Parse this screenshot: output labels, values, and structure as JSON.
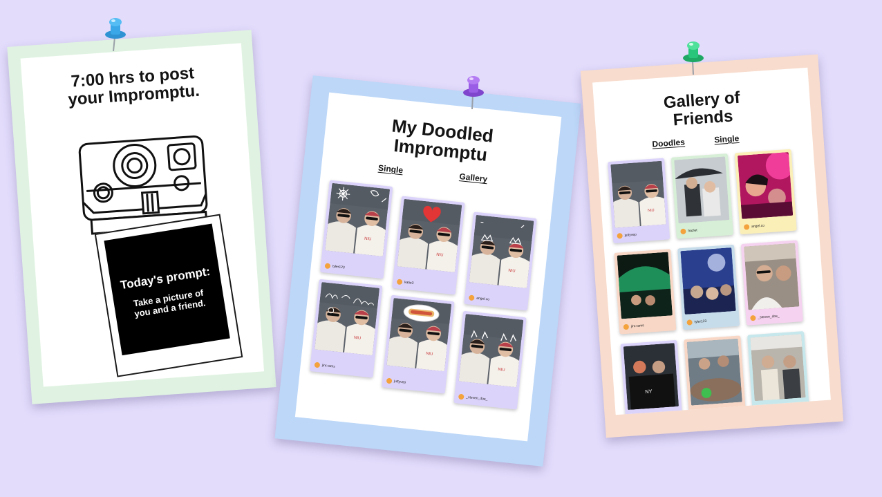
{
  "card_timer": {
    "title_line1": "7:00 hrs to post",
    "title_line2": "your Impromptu.",
    "prompt_title": "Today's prompt:",
    "prompt_text": "Take a picture of you and a friend.",
    "bg_color": "#e0f3e2",
    "pin_color": "#3aa8e8",
    "illustration": "instant-camera-icon"
  },
  "card_doodled": {
    "title_line1": "My Doodled",
    "title_line2": "Impromptu",
    "tab_single": "Single",
    "tab_gallery": "Gallery",
    "bg_color": "#bcd7f8",
    "pin_color": "#9a5ee6",
    "photos": [
      {
        "username": "tyler123",
        "doodle": "flower-doodle"
      },
      {
        "username": "katie3",
        "doodle": "heart-doodle"
      },
      {
        "username": "angel.co",
        "doodle": "crown-doodle"
      },
      {
        "username": "jinr.rams",
        "doodle": "text-doodle"
      },
      {
        "username": "juttyvep",
        "doodle": "hotdog-doodle"
      },
      {
        "username": "_steven_doe_",
        "doodle": "ears-doodle"
      }
    ]
  },
  "card_gallery": {
    "title_line1": "Gallery of",
    "title_line2": "Friends",
    "tab_doodles": "Doodles",
    "tab_single": "Single",
    "bg_color": "#f8dccd",
    "pin_color": "#29c57a",
    "photos": [
      {
        "username": "juttyvep",
        "frame": "#dcd3fb",
        "scene": "friends-selfie"
      },
      {
        "username": "hazlet",
        "frame": "#d6efd6",
        "scene": "umbrella-friends"
      },
      {
        "username": "angel.co",
        "frame": "#fbefb8",
        "scene": "party-lights"
      },
      {
        "username": "jinr.rams",
        "frame": "#f8d7c6",
        "scene": "green-stadium"
      },
      {
        "username": "tyler123",
        "frame": "#c7dceb",
        "scene": "concert-night"
      },
      {
        "username": "_steven_doe_",
        "frame": "#f5d2ef",
        "scene": "room-selfie"
      },
      {
        "username": "",
        "frame": "#dcd3fb",
        "scene": "night-group"
      },
      {
        "username": "",
        "frame": "#f8d7c6",
        "scene": "restaurant-table"
      },
      {
        "username": "",
        "frame": "#c6e8ec",
        "scene": "cafe-group"
      }
    ]
  }
}
